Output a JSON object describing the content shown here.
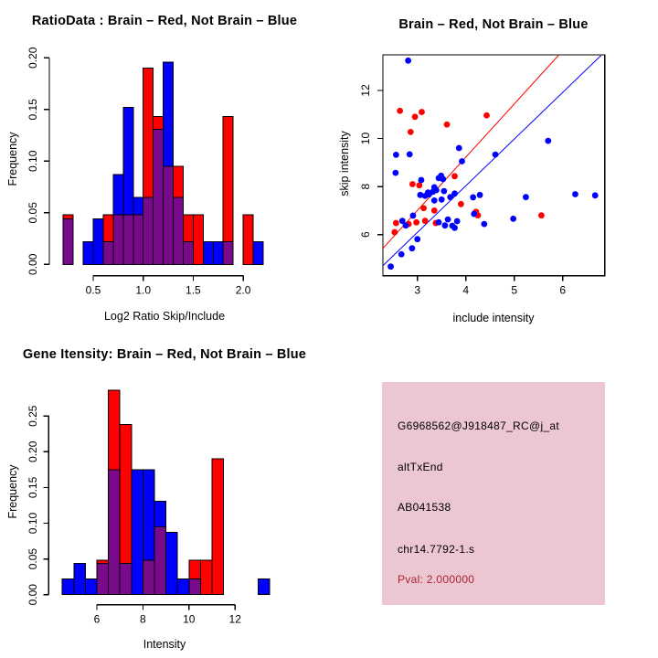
{
  "window": {
    "background": "#ffffff"
  },
  "colors": {
    "brain_red": "#ff0000",
    "not_brain_blue": "#0000ff",
    "overlap_purple": "#7a0a8c",
    "axis_black": "#000000",
    "info_background_pink": "#ecc6d2",
    "pval_dark_red": "#ab2330"
  },
  "chart_data": [
    {
      "id": "ratio_hist",
      "type": "bar",
      "title": "RatioData : Brain – Red, Not Brain – Blue",
      "xlabel": "Log2 Ratio Skip/Include",
      "ylabel": "Frequency",
      "bin_start": 0.2,
      "bin_width": 0.1,
      "x_tick_values": [
        0.5,
        1.0,
        1.5,
        2.0
      ],
      "x_tick_labels": [
        "0.5",
        "1.0",
        "1.5",
        "2.0"
      ],
      "y_tick_values": [
        0,
        0.05,
        0.1,
        0.15,
        0.2
      ],
      "y_tick_labels": [
        "0.00",
        "0.05",
        "0.10",
        "0.15",
        "0.20"
      ],
      "ylim": [
        0,
        0.2
      ],
      "series": [
        {
          "name": "Brain (red)",
          "color_key": "brain_red",
          "values": [
            0.048,
            0,
            0,
            0,
            0.048,
            0.048,
            0.048,
            0.048,
            0.19,
            0.143,
            0.095,
            0.095,
            0.048,
            0.048,
            0,
            0,
            0.143,
            0,
            0.048,
            0
          ]
        },
        {
          "name": "Not Brain (blue)",
          "color_key": "not_brain_blue",
          "values": [
            0.044,
            0,
            0.022,
            0.044,
            0.022,
            0.087,
            0.152,
            0.065,
            0.065,
            0.131,
            0.196,
            0.065,
            0.022,
            0,
            0.022,
            0.022,
            0.022,
            0,
            0,
            0.022
          ]
        }
      ]
    },
    {
      "id": "intensity_scatter",
      "type": "scatter",
      "title": "Brain – Red, Not Brain – Blue",
      "xlabel": "include intensity",
      "ylabel": "skip intensity",
      "xlim": [
        2.29,
        6.87
      ],
      "ylim": [
        4.28,
        13.45
      ],
      "x_tick_values": [
        3,
        4,
        5,
        6
      ],
      "x_tick_labels": [
        "3",
        "4",
        "5",
        "6"
      ],
      "y_tick_values": [
        6,
        8,
        10,
        12
      ],
      "y_tick_labels": [
        "6",
        "8",
        "10",
        "12"
      ],
      "red_points": [
        [
          2.64,
          11.15
        ],
        [
          2.95,
          10.9
        ],
        [
          3.09,
          11.1
        ],
        [
          2.86,
          10.27
        ],
        [
          3.61,
          10.58
        ],
        [
          4.43,
          10.96
        ],
        [
          2.9,
          8.1
        ],
        [
          3.04,
          8.05
        ],
        [
          3.77,
          8.43
        ],
        [
          3.13,
          7.1
        ],
        [
          3.35,
          7.0
        ],
        [
          3.9,
          7.27
        ],
        [
          4.21,
          6.95
        ],
        [
          4.25,
          6.8
        ],
        [
          2.56,
          6.48
        ],
        [
          2.53,
          6.1
        ],
        [
          2.82,
          6.44
        ],
        [
          2.98,
          6.51
        ],
        [
          3.16,
          6.57
        ],
        [
          3.38,
          6.48
        ],
        [
          5.56,
          6.8
        ]
      ],
      "blue_points": [
        [
          2.81,
          13.24
        ],
        [
          2.56,
          9.32
        ],
        [
          2.84,
          9.34
        ],
        [
          3.86,
          9.6
        ],
        [
          3.92,
          9.05
        ],
        [
          4.61,
          9.33
        ],
        [
          5.7,
          9.9
        ],
        [
          2.55,
          8.57
        ],
        [
          3.44,
          8.35
        ],
        [
          3.53,
          8.31
        ],
        [
          3.49,
          8.45
        ],
        [
          3.08,
          8.27
        ],
        [
          3.35,
          7.97
        ],
        [
          3.22,
          7.75
        ],
        [
          3.32,
          7.78
        ],
        [
          3.39,
          7.85
        ],
        [
          3.55,
          7.81
        ],
        [
          3.06,
          7.65
        ],
        [
          3.16,
          7.61
        ],
        [
          3.24,
          7.67
        ],
        [
          3.5,
          7.46
        ],
        [
          3.77,
          7.71
        ],
        [
          3.68,
          7.56
        ],
        [
          4.15,
          7.55
        ],
        [
          4.29,
          7.65
        ],
        [
          3.35,
          7.42
        ],
        [
          5.24,
          7.56
        ],
        [
          6.26,
          7.68
        ],
        [
          6.67,
          7.63
        ],
        [
          2.69,
          6.57
        ],
        [
          2.91,
          6.79
        ],
        [
          3.0,
          5.81
        ],
        [
          3.44,
          6.51
        ],
        [
          3.57,
          6.38
        ],
        [
          3.63,
          6.63
        ],
        [
          3.72,
          6.37
        ],
        [
          3.82,
          6.56
        ],
        [
          3.77,
          6.28
        ],
        [
          4.17,
          6.86
        ],
        [
          4.38,
          6.44
        ],
        [
          4.98,
          6.66
        ],
        [
          2.76,
          6.38
        ],
        [
          2.67,
          5.18
        ],
        [
          2.89,
          5.43
        ],
        [
          2.45,
          4.67
        ]
      ],
      "lines": [
        {
          "color_key": "brain_red",
          "x1": 2.29,
          "y1": 5.43,
          "x2": 5.91,
          "y2": 13.45
        },
        {
          "color_key": "not_brain_blue",
          "x1": 2.29,
          "y1": 4.71,
          "x2": 6.79,
          "y2": 13.45
        }
      ]
    },
    {
      "id": "gene_hist",
      "type": "bar",
      "title": "Gene Itensity: Brain – Red, Not Brain – Blue",
      "xlabel": "Intensity",
      "ylabel": "Frequency",
      "bin_start": 4.5,
      "bin_width": 0.5,
      "x_tick_values": [
        6,
        8,
        10,
        12
      ],
      "x_tick_labels": [
        "6",
        "8",
        "10",
        "12"
      ],
      "y_tick_values": [
        0,
        0.05,
        0.1,
        0.15,
        0.2,
        0.25
      ],
      "y_tick_labels": [
        "0.00",
        "0.05",
        "0.10",
        "0.15",
        "0.20",
        "0.25"
      ],
      "ylim": [
        0,
        0.286
      ],
      "series": [
        {
          "name": "Brain (red)",
          "color_key": "brain_red",
          "values": [
            0,
            0,
            0,
            0.048,
            0.286,
            0.238,
            0,
            0.048,
            0.095,
            0,
            0,
            0.048,
            0.048,
            0.19,
            0,
            0,
            0,
            0
          ]
        },
        {
          "name": "Not Brain (blue)",
          "color_key": "not_brain_blue",
          "values": [
            0.022,
            0.044,
            0.022,
            0.044,
            0.175,
            0.044,
            0.175,
            0.175,
            0.131,
            0.087,
            0.022,
            0.022,
            0,
            0,
            0,
            0,
            0,
            0.022
          ]
        }
      ]
    }
  ],
  "info_panel": {
    "lines": [
      "G6968562@J918487_RC@j_at",
      "altTxEnd",
      "AB041538",
      "chr14.7792-1.s"
    ],
    "pval": "Pval: 2.000000"
  }
}
